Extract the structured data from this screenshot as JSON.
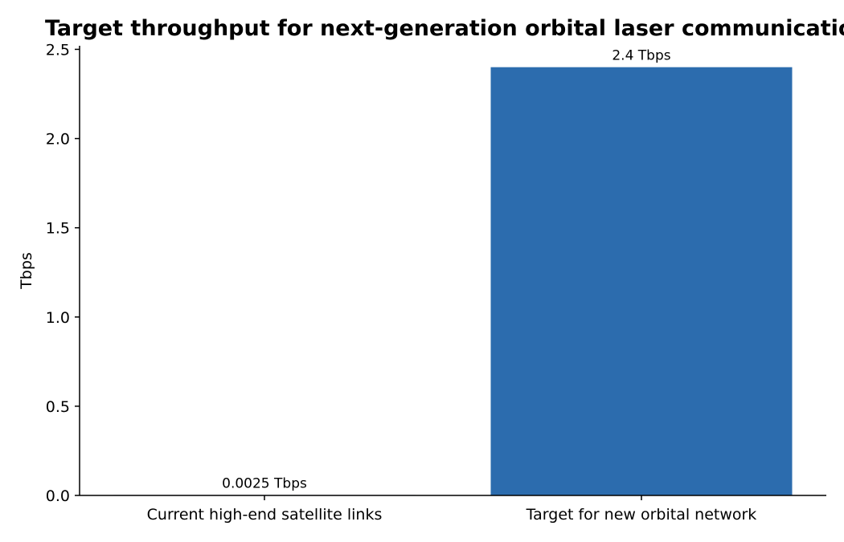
{
  "chart_data": {
    "type": "bar",
    "title": "Target throughput for next-generation orbital laser communications",
    "xlabel": "",
    "ylabel": "Tbps",
    "categories": [
      "Current high-end satellite links",
      "Target for new orbital network"
    ],
    "values": [
      0.0025,
      2.4
    ],
    "data_labels": [
      "0.0025 Tbps",
      "2.4 Tbps"
    ],
    "ylim": [
      0,
      2.52
    ],
    "yticks": [
      0.0,
      0.5,
      1.0,
      1.5,
      2.0,
      2.5
    ],
    "ytick_labels": [
      "0.0",
      "0.5",
      "1.0",
      "1.5",
      "2.0",
      "2.5"
    ],
    "bar_color": "#2c6cae",
    "grid": false,
    "legend": "none"
  }
}
